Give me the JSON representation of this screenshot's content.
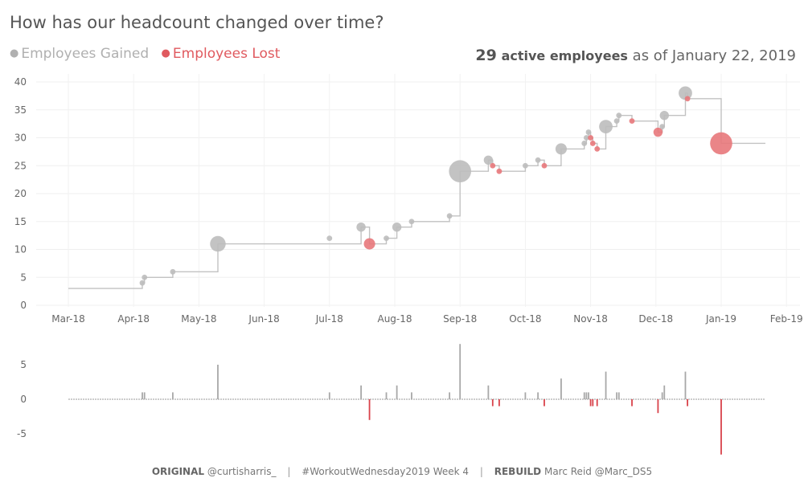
{
  "title": "How has our headcount changed over time?",
  "legend": {
    "gained_label": "Employees Gained",
    "lost_label": "Employees Lost",
    "gained_color": "#b0b0b0",
    "lost_color": "#e05a5f"
  },
  "summary": {
    "count": "29",
    "label": "active employees",
    "date_text": "as of January 22, 2019"
  },
  "footer": {
    "original_label": "ORIGINAL",
    "original_handle": "@curtisharris_",
    "sep": "|",
    "hashtag": "#WorkoutWednesday2019",
    "week": "Week 4",
    "rebuild_label": "REBUILD",
    "rebuild_author": "Marc Reid @Marc_DS5"
  },
  "chart_data": [
    {
      "type": "line",
      "subtype": "step line with event markers",
      "x_ticks": [
        "Mar-18",
        "Apr-18",
        "May-18",
        "Jun-18",
        "Jul-18",
        "Aug-18",
        "Sep-18",
        "Oct-18",
        "Nov-18",
        "Dec-18",
        "Jan-19",
        "Feb-19"
      ],
      "ylim": [
        0,
        40
      ],
      "y_ticks": [
        0,
        5,
        10,
        15,
        20,
        25,
        30,
        35,
        40
      ],
      "grid": true,
      "series": [
        {
          "name": "Employees Gained",
          "color": "#b0b0b0",
          "points": [
            {
              "date": "2018-04-05",
              "headcount": 4,
              "change": 1
            },
            {
              "date": "2018-04-06",
              "headcount": 5,
              "change": 1
            },
            {
              "date": "2018-04-19",
              "headcount": 6,
              "change": 1
            },
            {
              "date": "2018-05-10",
              "headcount": 11,
              "change": 5
            },
            {
              "date": "2018-07-01",
              "headcount": 12,
              "change": 1
            },
            {
              "date": "2018-07-16",
              "headcount": 14,
              "change": 2
            },
            {
              "date": "2018-07-28",
              "headcount": 12,
              "change": 1
            },
            {
              "date": "2018-08-02",
              "headcount": 14,
              "change": 2
            },
            {
              "date": "2018-08-09",
              "headcount": 15,
              "change": 1
            },
            {
              "date": "2018-08-27",
              "headcount": 16,
              "change": 1
            },
            {
              "date": "2018-09-01",
              "headcount": 24,
              "change": 8
            },
            {
              "date": "2018-09-14",
              "headcount": 26,
              "change": 2
            },
            {
              "date": "2018-10-01",
              "headcount": 25,
              "change": 1
            },
            {
              "date": "2018-10-07",
              "headcount": 26,
              "change": 1
            },
            {
              "date": "2018-10-18",
              "headcount": 28,
              "change": 3
            },
            {
              "date": "2018-10-29",
              "headcount": 29,
              "change": 1
            },
            {
              "date": "2018-10-30",
              "headcount": 30,
              "change": 1
            },
            {
              "date": "2018-10-31",
              "headcount": 31,
              "change": 1
            },
            {
              "date": "2018-11-08",
              "headcount": 32,
              "change": 4
            },
            {
              "date": "2018-11-13",
              "headcount": 33,
              "change": 1
            },
            {
              "date": "2018-11-14",
              "headcount": 34,
              "change": 1
            },
            {
              "date": "2018-12-04",
              "headcount": 32,
              "change": 1
            },
            {
              "date": "2018-12-05",
              "headcount": 34,
              "change": 2
            },
            {
              "date": "2018-12-15",
              "headcount": 38,
              "change": 4
            }
          ]
        },
        {
          "name": "Employees Lost",
          "color": "#e05a5f",
          "points": [
            {
              "date": "2018-07-20",
              "headcount": 11,
              "change": -3
            },
            {
              "date": "2018-09-16",
              "headcount": 25,
              "change": -1
            },
            {
              "date": "2018-09-19",
              "headcount": 24,
              "change": -1
            },
            {
              "date": "2018-10-10",
              "headcount": 25,
              "change": -1
            },
            {
              "date": "2018-11-01",
              "headcount": 30,
              "change": -1
            },
            {
              "date": "2018-11-02",
              "headcount": 29,
              "change": -1
            },
            {
              "date": "2018-11-04",
              "headcount": 28,
              "change": -1
            },
            {
              "date": "2018-11-20",
              "headcount": 33,
              "change": -1
            },
            {
              "date": "2018-12-02",
              "headcount": 31,
              "change": -2
            },
            {
              "date": "2018-12-16",
              "headcount": 37,
              "change": -1
            },
            {
              "date": "2019-01-01",
              "headcount": 29,
              "change": -8
            }
          ]
        }
      ],
      "step_line": [
        {
          "date": "2018-03-01",
          "headcount": 3
        },
        {
          "date": "2018-04-05",
          "headcount": 4
        },
        {
          "date": "2018-04-06",
          "headcount": 5
        },
        {
          "date": "2018-04-19",
          "headcount": 6
        },
        {
          "date": "2018-05-10",
          "headcount": 11
        },
        {
          "date": "2018-07-16",
          "headcount": 14
        },
        {
          "date": "2018-07-20",
          "headcount": 11
        },
        {
          "date": "2018-07-28",
          "headcount": 12
        },
        {
          "date": "2018-08-02",
          "headcount": 14
        },
        {
          "date": "2018-08-09",
          "headcount": 15
        },
        {
          "date": "2018-08-27",
          "headcount": 16
        },
        {
          "date": "2018-09-01",
          "headcount": 24
        },
        {
          "date": "2018-09-14",
          "headcount": 26
        },
        {
          "date": "2018-09-16",
          "headcount": 25
        },
        {
          "date": "2018-09-19",
          "headcount": 24
        },
        {
          "date": "2018-10-01",
          "headcount": 25
        },
        {
          "date": "2018-10-07",
          "headcount": 26
        },
        {
          "date": "2018-10-10",
          "headcount": 25
        },
        {
          "date": "2018-10-18",
          "headcount": 28
        },
        {
          "date": "2018-10-29",
          "headcount": 29
        },
        {
          "date": "2018-10-30",
          "headcount": 30
        },
        {
          "date": "2018-10-31",
          "headcount": 31
        },
        {
          "date": "2018-11-01",
          "headcount": 30
        },
        {
          "date": "2018-11-02",
          "headcount": 29
        },
        {
          "date": "2018-11-04",
          "headcount": 28
        },
        {
          "date": "2018-11-08",
          "headcount": 32
        },
        {
          "date": "2018-11-13",
          "headcount": 33
        },
        {
          "date": "2018-11-14",
          "headcount": 34
        },
        {
          "date": "2018-11-20",
          "headcount": 33
        },
        {
          "date": "2018-12-02",
          "headcount": 31
        },
        {
          "date": "2018-12-04",
          "headcount": 32
        },
        {
          "date": "2018-12-05",
          "headcount": 34
        },
        {
          "date": "2018-12-15",
          "headcount": 38
        },
        {
          "date": "2018-12-16",
          "headcount": 37
        },
        {
          "date": "2019-01-01",
          "headcount": 29
        },
        {
          "date": "2019-01-22",
          "headcount": 29
        }
      ]
    },
    {
      "type": "bar",
      "subtype": "daily net change",
      "ylim": [
        -9,
        9
      ],
      "y_ticks": [
        -5,
        0,
        5
      ],
      "grid": false,
      "x_range": [
        "2018-03-01",
        "2019-01-22"
      ],
      "series": [
        {
          "name": "Employees Gained",
          "color": "#a8a8a8",
          "from_points_of": "Employees Gained"
        },
        {
          "name": "Employees Lost",
          "color": "#d9434b",
          "from_points_of": "Employees Lost"
        }
      ]
    }
  ]
}
